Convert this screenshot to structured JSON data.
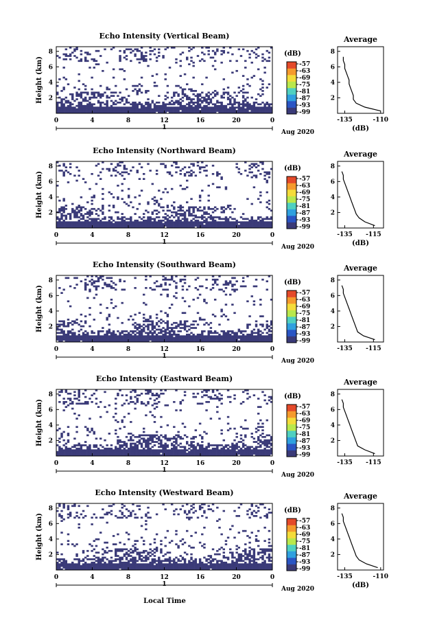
{
  "colors": {
    "field": "#3a3a78",
    "scale": [
      "#3a3a78",
      "#2a55c4",
      "#2fa0df",
      "#4fd0c0",
      "#b9e84c",
      "#f4dc3a",
      "#f59a2d",
      "#e44a2a"
    ]
  },
  "x_axis": {
    "ticks": [
      "0",
      "4",
      "8",
      "12",
      "16",
      "20",
      "0"
    ],
    "day_label": "1",
    "month_label": "Aug 2020",
    "xlabel": "Local Time"
  },
  "colorbar": {
    "unit_label": "(dB)",
    "ticks": [
      "-57",
      "-63",
      "-69",
      "-75",
      "-81",
      "-87",
      "-93",
      "-99"
    ]
  },
  "profile_titles": "Average",
  "panels": [
    {
      "title": "Echo Intensity (Vertical Beam)",
      "ylabel": "Height (km)",
      "ytick_labels": [
        "8",
        "6",
        "4",
        "2"
      ],
      "profile_xticks": [
        "-135",
        "-110"
      ],
      "profile_xlabel": "(dB)",
      "profile_h_km": [
        0.3,
        0.8,
        1.3,
        1.8,
        2.3,
        2.8,
        3.3,
        3.8,
        4.3,
        4.8,
        5.3,
        5.8,
        6.3,
        6.8,
        7.3
      ],
      "profile_db": [
        -110,
        -121,
        -127,
        -129,
        -129,
        -130,
        -131,
        -132,
        -132,
        -133,
        -134,
        -135,
        -135,
        -136,
        -136
      ]
    },
    {
      "title": "Echo Intensity (Northward Beam)",
      "ylabel": "Height (km)",
      "ytick_labels": [
        "8",
        "6",
        "4",
        "2"
      ],
      "profile_xticks": [
        "-135",
        "-115"
      ],
      "profile_xlabel": "(dB)",
      "profile_h_km": [
        0.3,
        0.8,
        1.3,
        1.8,
        2.3,
        2.8,
        3.3,
        3.8,
        4.3,
        4.8,
        5.3,
        5.8,
        6.3,
        6.8,
        7.3
      ],
      "profile_db": [
        -114,
        -121,
        -125,
        -127,
        -128,
        -129,
        -130,
        -131,
        -132,
        -133,
        -134,
        -135,
        -136,
        -136,
        -137
      ]
    },
    {
      "title": "Echo Intensity (Southward Beam)",
      "ylabel": "Height (km)",
      "ytick_labels": [
        "8",
        "6",
        "4",
        "2"
      ],
      "profile_xticks": [
        "-135",
        "-115"
      ],
      "profile_xlabel": "",
      "profile_h_km": [
        0.3,
        0.8,
        1.3,
        1.8,
        2.3,
        2.8,
        3.3,
        3.8,
        4.3,
        4.8,
        5.3,
        5.8,
        6.3,
        6.8,
        7.3
      ],
      "profile_db": [
        -114,
        -122,
        -126,
        -127,
        -128,
        -129,
        -130,
        -131,
        -132,
        -133,
        -134,
        -135,
        -136,
        -136,
        -137
      ]
    },
    {
      "title": "Echo Intensity (Eastward Beam)",
      "ylabel": "Height (km)",
      "ytick_labels": [
        "8",
        "6",
        "4",
        "2"
      ],
      "profile_xticks": [
        "-135",
        "-115"
      ],
      "profile_xlabel": "",
      "profile_h_km": [
        0.3,
        0.8,
        1.3,
        1.8,
        2.3,
        2.8,
        3.3,
        3.8,
        4.3,
        4.8,
        5.3,
        5.8,
        6.3,
        6.8,
        7.3
      ],
      "profile_db": [
        -114,
        -121,
        -126,
        -127,
        -128,
        -129,
        -130,
        -131,
        -132,
        -133,
        -134,
        -135,
        -136,
        -136,
        -137
      ]
    },
    {
      "title": "Echo Intensity (Westward Beam)",
      "ylabel": "Height (km)",
      "ytick_labels": [
        "8",
        "6",
        "4",
        "2"
      ],
      "profile_xticks": [
        "-135",
        "-110"
      ],
      "profile_xlabel": "(dB)",
      "profile_h_km": [
        0.3,
        0.8,
        1.3,
        1.8,
        2.3,
        2.8,
        3.3,
        3.8,
        4.3,
        4.8,
        5.3,
        5.8,
        6.3,
        6.8,
        7.3
      ],
      "profile_db": [
        -112,
        -120,
        -125,
        -127,
        -128,
        -129,
        -130,
        -131,
        -132,
        -133,
        -134,
        -135,
        -136,
        -136,
        -137
      ]
    }
  ],
  "chart_data": {
    "type": "heatmap",
    "x_range_hours": [
      0,
      24
    ],
    "y_range_km": [
      0,
      8
    ],
    "colorbar_range_db": [
      -99,
      -57
    ],
    "profile_range_db": [
      -140,
      -108
    ],
    "note_values": "Each panel: height-time field of echo intensity for one beam; right column: time-averaged profile."
  }
}
